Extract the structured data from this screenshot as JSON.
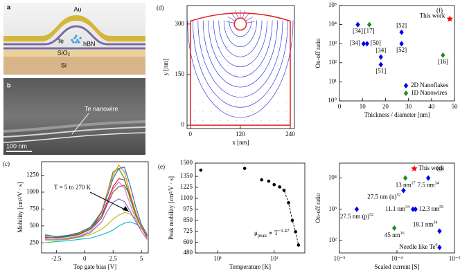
{
  "schematic": {
    "label": "a",
    "au": "Au",
    "te": "Te",
    "hbn": "hBN",
    "sio2": "SiO₂",
    "si": "Si"
  },
  "sem": {
    "label": "b",
    "annotation": "Te nanowire",
    "scale_bar": "100 nm"
  },
  "chart_data": [
    {
      "type": "line",
      "panel_label": "(c)",
      "xlabel": "Top gate bias [V]",
      "ylabel": "Mobility [cm²/V · s]",
      "annotation": "T = 5 to 270 K",
      "xlim": [
        -3.8,
        5.6
      ],
      "xticks": [
        -2.5,
        0,
        2.5,
        5
      ],
      "ylim": [
        100,
        1450
      ],
      "yticks": [
        250,
        500,
        750,
        1000,
        1250
      ],
      "x": [
        -3.5,
        -2.5,
        -1.5,
        -0.5,
        0.5,
        1.5,
        2,
        2.5,
        3,
        3.5,
        4,
        4.5,
        5,
        5.5
      ],
      "series": [
        {
          "color": "#17becf",
          "values": [
            250,
            270,
            280,
            300,
            320,
            370,
            400,
            440,
            500,
            540,
            560,
            530,
            470,
            360
          ]
        },
        {
          "color": "#bcbd22",
          "values": [
            280,
            290,
            300,
            330,
            370,
            450,
            520,
            600,
            660,
            700,
            680,
            600,
            500,
            370
          ]
        },
        {
          "color": "#9467bd",
          "values": [
            300,
            300,
            310,
            340,
            400,
            560,
            720,
            850,
            900,
            860,
            720,
            560,
            420,
            300
          ]
        },
        {
          "color": "#e377c2",
          "values": [
            300,
            300,
            320,
            350,
            420,
            620,
            850,
            1050,
            1150,
            1060,
            820,
            600,
            420,
            320
          ]
        },
        {
          "color": "#8c564b",
          "values": [
            320,
            330,
            350,
            380,
            450,
            620,
            820,
            1000,
            1080,
            1100,
            950,
            700,
            480,
            340
          ]
        },
        {
          "color": "#d62728",
          "values": [
            330,
            330,
            350,
            380,
            460,
            650,
            870,
            1080,
            1200,
            1180,
            950,
            680,
            470,
            340
          ]
        },
        {
          "color": "#2ca02c",
          "values": [
            340,
            320,
            340,
            370,
            450,
            700,
            1000,
            1300,
            1350,
            1200,
            900,
            650,
            480,
            360
          ]
        },
        {
          "color": "#ff7f0e",
          "values": [
            360,
            340,
            360,
            390,
            470,
            720,
            1000,
            1250,
            1400,
            1300,
            980,
            700,
            490,
            360
          ]
        },
        {
          "color": "#1f77b4",
          "values": [
            370,
            340,
            360,
            400,
            480,
            700,
            950,
            1200,
            1350,
            1370,
            1100,
            780,
            520,
            370
          ]
        }
      ]
    },
    {
      "type": "field",
      "panel_label": "(d)",
      "xlabel": "x [nm]",
      "ylabel": "y [nm]",
      "xlim": [
        -8,
        250
      ],
      "xticks": [
        0,
        120,
        240
      ],
      "ylim": [
        -10,
        355
      ],
      "yticks": [
        0,
        150,
        300
      ]
    },
    {
      "type": "scatter",
      "panel_label": "(e)",
      "xlabel": "Temperature [K]",
      "ylabel": "Peak mobility [cm²/V · s]",
      "xscale": "log",
      "xlim": [
        4,
        350
      ],
      "xticks": [
        {
          "value": 10,
          "label": "10¹"
        },
        {
          "value": 100,
          "label": "10²"
        }
      ],
      "ylim": [
        480,
        1500
      ],
      "yticks": [
        480,
        600,
        725,
        850,
        975,
        1100,
        1225,
        1350,
        1500
      ],
      "annotation": {
        "symbol": "μ",
        "subscript": "peak",
        "relation": " ∝ T",
        "exponent": "−1.47"
      },
      "series": [
        {
          "color": "#000000",
          "marker": "circle",
          "x": [
            5,
            30,
            60,
            80,
            100,
            125,
            150,
            180,
            210,
            240,
            270
          ],
          "values": [
            1420,
            1440,
            1310,
            1295,
            1255,
            1230,
            1190,
            1050,
            850,
            720,
            570
          ]
        }
      ]
    },
    {
      "type": "scatter",
      "panel_label": "(f)",
      "xlabel": "Thickness / diameter [nm]",
      "ylabel": "On-off ratio",
      "yscale": "log",
      "xlim": [
        0,
        50
      ],
      "xticks": [
        0,
        10,
        20,
        30,
        40,
        50
      ],
      "ylim": [
        1,
        100000
      ],
      "yticks": [
        {
          "value": 1,
          "label": "10⁰"
        },
        {
          "value": 10,
          "label": "10¹"
        },
        {
          "value": 100,
          "label": "10²"
        },
        {
          "value": 1000,
          "label": "10³"
        },
        {
          "value": 10000,
          "label": "10⁴"
        },
        {
          "value": 100000,
          "label": "10⁵"
        }
      ],
      "legend": "lower right",
      "series": [
        {
          "name": "2D Nanoflakes",
          "color": "#0000ee",
          "marker": "diamond",
          "x": [
            8,
            10.5,
            12,
            27,
            27,
            18,
            18
          ],
          "values": [
            10000,
            1000,
            1000,
            4000,
            1000,
            200,
            80
          ],
          "labels": [
            "[34]",
            "[34]",
            "[50]",
            "[52]",
            "[52]",
            "[34]",
            "[51]"
          ]
        },
        {
          "name": "1D Nanowires",
          "color": "#228b22",
          "marker": "diamond",
          "x": [
            13,
            45
          ],
          "values": [
            10000,
            250
          ],
          "labels": [
            "[17]",
            "[16]"
          ]
        },
        {
          "color": "#ff0000",
          "marker": "star",
          "x": [
            48
          ],
          "values": [
            20000
          ],
          "labels": [
            "This work"
          ]
        }
      ]
    },
    {
      "type": "scatter",
      "panel_label": "(g)",
      "xlabel": "Scaled current [S]",
      "ylabel": "On-off ratio",
      "xscale": "log",
      "yscale": "log",
      "xlim": [
        1e-05,
        0.001
      ],
      "xticks": [
        {
          "value": 1e-05,
          "label": "10⁻⁵"
        },
        {
          "value": 0.0001,
          "label": "10⁻⁴"
        },
        {
          "value": 0.001,
          "label": "10⁻³"
        }
      ],
      "ylim": [
        40,
        30000
      ],
      "yticks": [
        {
          "value": 100,
          "label": "10²"
        },
        {
          "value": 1000,
          "label": "10³"
        },
        {
          "value": 10000,
          "label": "10⁴"
        }
      ],
      "series": [
        {
          "color": "#0000ee",
          "marker": "diamond",
          "x": [
            2e-05,
            0.00013,
            0.00019,
            0.00021,
            0.00035,
            0.00055,
            0.00055
          ],
          "values": [
            1000,
            4000,
            1000,
            1000,
            10000,
            200,
            60
          ],
          "labels": [
            "27.5 nm (p)",
            "27.5 nm (n)",
            "11.1 nm",
            "12.3 nm",
            "7.5 nm",
            "18.1 nm",
            "Needle like Te"
          ],
          "refs": [
            "52",
            "52",
            "34",
            "50",
            "34",
            "34",
            "9"
          ]
        },
        {
          "color": "#228b22",
          "marker": "diamond",
          "x": [
            0.00014,
            9e-05
          ],
          "values": [
            10000,
            250
          ],
          "labels": [
            "13 nm",
            "45 nm"
          ],
          "refs": [
            "17",
            "16"
          ]
        },
        {
          "color": "#ff0000",
          "marker": "star",
          "x": [
            0.0002
          ],
          "values": [
            20000
          ],
          "labels": [
            "This work"
          ]
        }
      ]
    }
  ]
}
